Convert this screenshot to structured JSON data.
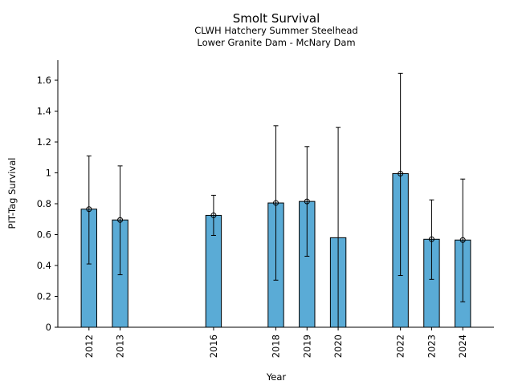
{
  "chart_data": {
    "type": "bar",
    "title": "Smolt Survival",
    "subtitle_lines": [
      "CLWH Hatchery Summer Steelhead",
      "Lower Granite Dam - McNary Dam"
    ],
    "xlabel": "Year",
    "ylabel": "PIT-Tag Survival",
    "x": [
      2012,
      2013,
      2016,
      2018,
      2019,
      2020,
      2022,
      2023,
      2024
    ],
    "values": [
      0.765,
      0.695,
      0.725,
      0.805,
      0.815,
      0.58,
      0.995,
      0.57,
      0.565
    ],
    "error_low": [
      0.41,
      0.34,
      0.595,
      0.305,
      0.46,
      null,
      0.335,
      0.31,
      0.165
    ],
    "error_high": [
      1.11,
      1.045,
      0.855,
      1.305,
      1.17,
      1.295,
      1.645,
      0.825,
      0.96
    ],
    "point_markers": [
      true,
      true,
      true,
      true,
      true,
      false,
      true,
      true,
      true
    ],
    "xlim": [
      2011.0,
      2025.0
    ],
    "ylim": [
      0,
      1.73
    ],
    "yticks": [
      0,
      0.2,
      0.4,
      0.6,
      0.8,
      1,
      1.2,
      1.4,
      1.6
    ],
    "ytick_labels": [
      "0",
      "0.2",
      "0.4",
      "0.6",
      "0.8",
      "1",
      "1.2",
      "1.4",
      "1.6"
    ],
    "bar_color": "#5aabd6",
    "grid": false,
    "legend": "none"
  }
}
